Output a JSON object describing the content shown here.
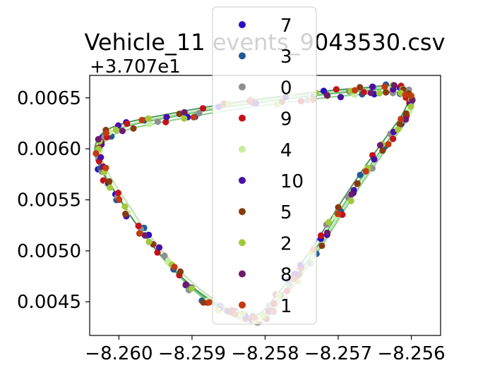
{
  "chart_data": {
    "type": "scatter",
    "title": "Vehicle_11 events_9043530.csv",
    "y_offset_label": "+3.707e1",
    "xlim": [
      -8.2604,
      -8.2556
    ],
    "ylim": [
      0.00417,
      0.00672
    ],
    "x_ticks": [
      -8.26,
      -8.259,
      -8.258,
      -8.257,
      -8.256
    ],
    "x_tick_labels": [
      "−8.260",
      "−8.259",
      "−8.258",
      "−8.257",
      "−8.256"
    ],
    "y_ticks": [
      0.0045,
      0.005,
      0.0055,
      0.006,
      0.0065
    ],
    "y_tick_labels": [
      "0.0045",
      "0.0050",
      "0.0055",
      "0.0060",
      "0.0065"
    ],
    "legend_position": "top-center",
    "route": [
      [
        -8.2599,
        0.00622
      ],
      [
        -8.2593,
        0.00631
      ],
      [
        -8.2586,
        0.0064
      ],
      [
        -8.2578,
        0.00648
      ],
      [
        -8.2571,
        0.00654
      ],
      [
        -8.2566,
        0.00657
      ],
      [
        -8.2563,
        0.00659
      ],
      [
        -8.2561,
        0.00656
      ],
      [
        -8.256,
        0.00648
      ],
      [
        -8.2561,
        0.0063
      ],
      [
        -8.2563,
        0.0061
      ],
      [
        -8.2566,
        0.0058
      ],
      [
        -8.2569,
        0.00548
      ],
      [
        -8.2572,
        0.00514
      ],
      [
        -8.2575,
        0.00482
      ],
      [
        -8.2578,
        0.00455
      ],
      [
        -8.258,
        0.00438
      ],
      [
        -8.2582,
        0.00432
      ],
      [
        -8.2585,
        0.0044
      ],
      [
        -8.2589,
        0.00458
      ],
      [
        -8.2593,
        0.00485
      ],
      [
        -8.2597,
        0.0052
      ],
      [
        -8.26,
        0.00552
      ],
      [
        -8.2602,
        0.00575
      ],
      [
        -8.2603,
        0.00595
      ],
      [
        -8.2602,
        0.00612
      ],
      [
        -8.2599,
        0.00622
      ]
    ],
    "series": [
      {
        "name": "7",
        "color": "#2b0fc4"
      },
      {
        "name": "3",
        "color": "#1f5a99"
      },
      {
        "name": "0",
        "color": "#8f8f8f"
      },
      {
        "name": "9",
        "color": "#c4121a"
      },
      {
        "name": "4",
        "color": "#c8eda0"
      },
      {
        "name": "10",
        "color": "#4a0fa3"
      },
      {
        "name": "5",
        "color": "#8a3a0f"
      },
      {
        "name": "2",
        "color": "#a3c93a"
      },
      {
        "name": "8",
        "color": "#6e1a6e"
      },
      {
        "name": "1",
        "color": "#c43a12"
      }
    ],
    "line_colors": [
      "#5fbf6a",
      "#86d08a",
      "#4a9a5a",
      "#b9e3a8"
    ]
  }
}
